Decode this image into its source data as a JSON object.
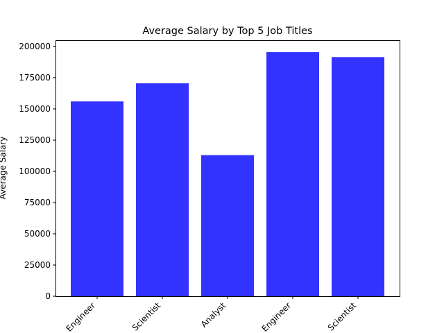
{
  "chart_data": {
    "type": "bar",
    "title": "Average Salary by Top 5 Job Titles",
    "xlabel": "",
    "ylabel": "Average Salary",
    "categories": [
      "Engineer",
      "Scientist",
      "Analyst",
      "Engineer",
      "Scientist"
    ],
    "values": [
      156000,
      170500,
      113000,
      195500,
      191500
    ],
    "ylim": [
      0,
      205000
    ],
    "yticks": [
      0,
      25000,
      50000,
      75000,
      100000,
      125000,
      150000,
      175000,
      200000
    ],
    "bar_color": "#3333ff",
    "grid": false,
    "legend": "none"
  }
}
